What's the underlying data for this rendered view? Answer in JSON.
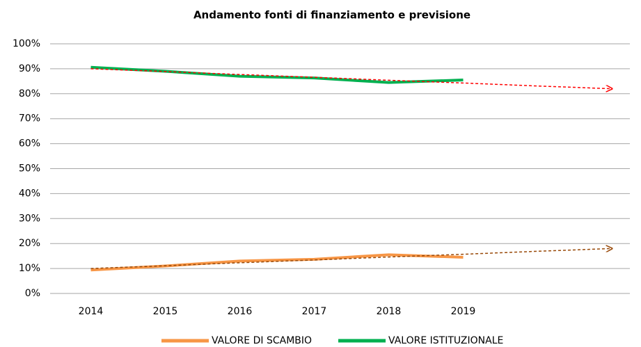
{
  "chart_data": {
    "type": "line",
    "title": "Andamento fonti di finanziamento e previsione",
    "categories": [
      "2014",
      "2015",
      "2016",
      "2017",
      "2018",
      "2019",
      null,
      null
    ],
    "series": [
      {
        "name": "VALORE DI SCAMBIO",
        "color": "#f79646",
        "values": [
          9.4,
          11,
          13,
          13.7,
          15.5,
          14.5,
          null,
          null
        ]
      },
      {
        "name": "VALORE ISTITUZIONALE",
        "color": "#00b050",
        "values": [
          90.6,
          89,
          87,
          86.3,
          84.5,
          85.5,
          null,
          null
        ]
      },
      {
        "color": "#ff0000",
        "dashed": true,
        "arrow": true,
        "values": [
          90,
          88.9,
          87.7,
          86.6,
          85.4,
          84.3,
          83.1,
          82
        ]
      },
      {
        "color": "#984807",
        "dashed": true,
        "arrow": true,
        "values": [
          10,
          11.1,
          12.3,
          13.4,
          14.6,
          15.7,
          16.9,
          18
        ]
      }
    ],
    "ylim": [
      0,
      100
    ],
    "yticks": [
      {
        "value": 0,
        "label": "0%"
      },
      {
        "value": 10,
        "label": "10%"
      },
      {
        "value": 20,
        "label": "20%"
      },
      {
        "value": 30,
        "label": "30%"
      },
      {
        "value": 40,
        "label": "40%"
      },
      {
        "value": 50,
        "label": "50%"
      },
      {
        "value": 60,
        "label": "60%"
      },
      {
        "value": 70,
        "label": "70%"
      },
      {
        "value": 80,
        "label": "80%"
      },
      {
        "value": 90,
        "label": "90%"
      },
      {
        "value": 100,
        "label": "100%"
      }
    ],
    "grid": true,
    "legend": "bottom"
  }
}
